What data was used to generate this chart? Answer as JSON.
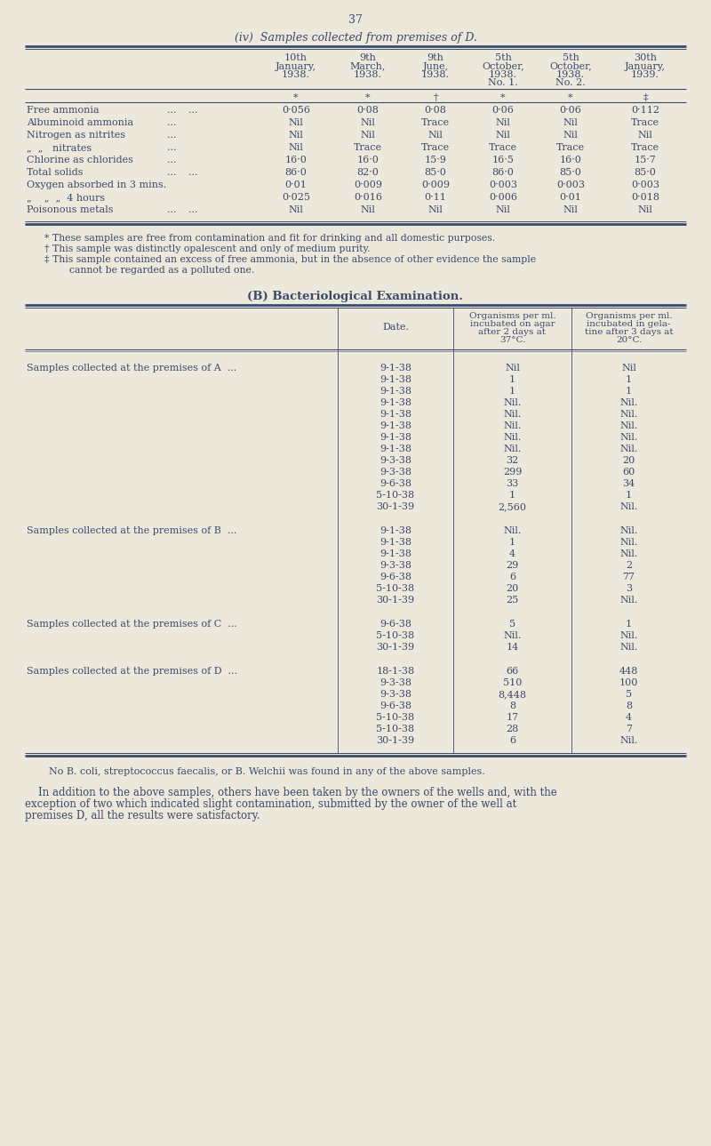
{
  "page_number": "37",
  "bg_color": "#ede8dc",
  "text_color": "#3a4a6b",
  "title": "(iv)  Samples collected from premises of D.",
  "section_b_title": "(B) Bacteriological Examination.",
  "table1_col_headers": [
    [
      "10th",
      "January,",
      "1938."
    ],
    [
      "9th",
      "March,",
      "1938."
    ],
    [
      "9th",
      "June,",
      "1938."
    ],
    [
      "5th",
      "October,",
      "1938.",
      "No. 1."
    ],
    [
      "5th",
      "October,",
      "1938.",
      "No. 2."
    ],
    [
      "30th",
      "January,",
      "1939."
    ]
  ],
  "symbol_row": [
    "*",
    "*",
    "†",
    "*",
    "*",
    "‡"
  ],
  "table1_row_labels": [
    "Free ammonia",
    "Albuminoid ammonia",
    "Nitrogen as nitrites",
    "„  „   nitrates",
    "Chlorine as chlorides",
    "Total solids",
    "Oxygen absorbed in 3 mins.",
    "„    „  „  4 hours",
    "Poisonous metals"
  ],
  "table1_row_dots1": [
    "...",
    "...",
    "...",
    "...",
    "...",
    "...",
    "",
    "",
    "..."
  ],
  "table1_row_dots2": [
    "...",
    "",
    "",
    "",
    "",
    "...",
    "",
    "",
    "..."
  ],
  "table1_data": [
    [
      "0·056",
      "0·08",
      "0·08",
      "0·06",
      "0·06",
      "0·112"
    ],
    [
      "Nil",
      "Nil",
      "Trace",
      "Nil",
      "Nil",
      "Trace"
    ],
    [
      "Nil",
      "Nil",
      "Nil",
      "Nil",
      "Nil",
      "Nil"
    ],
    [
      "Nil",
      "Trace",
      "Trace",
      "Trace",
      "Trace",
      "Trace"
    ],
    [
      "16·0",
      "16·0",
      "15·9",
      "16·5",
      "16·0",
      "15·7"
    ],
    [
      "86·0",
      "82·0",
      "85·0",
      "86·0",
      "85·0",
      "85·0"
    ],
    [
      "0·01",
      "0·009",
      "0·009",
      "0·003",
      "0·003",
      "0·003"
    ],
    [
      "0·025",
      "0·016",
      "0·11",
      "0·006",
      "0·01",
      "0·018"
    ],
    [
      "Nil",
      "Nil",
      "Nil",
      "Nil",
      "Nil",
      "Nil"
    ]
  ],
  "footnotes": [
    "* These samples are free from contamination and fit for drinking and all domestic purposes.",
    "† This sample was distinctly opalescent and only of medium purity.",
    "‡ This sample contained an excess of free ammonia, but in the absence of other evidence the sample",
    "        cannot be regarded as a polluted one."
  ],
  "table2_sections": [
    {
      "label": "Samples collected at the premises of A  ...",
      "rows": [
        [
          "9-1-38",
          "Nil",
          "Nil"
        ],
        [
          "9-1-38",
          "1",
          "1"
        ],
        [
          "9-1-38",
          "1",
          "1"
        ],
        [
          "9-1-38",
          "Nil.",
          "Nil."
        ],
        [
          "9-1-38",
          "Nil.",
          "Nil."
        ],
        [
          "9-1-38",
          "Nil.",
          "Nil."
        ],
        [
          "9-1-38",
          "Nil.",
          "Nil."
        ],
        [
          "9-1-38",
          "Nil.",
          "Nil."
        ],
        [
          "9-3-38",
          "32",
          "20"
        ],
        [
          "9-3-38",
          "299",
          "60"
        ],
        [
          "9-6-38",
          "33",
          "34"
        ],
        [
          "5-10-38",
          "1",
          "1"
        ],
        [
          "30-1-39",
          "2,560",
          "Nil."
        ]
      ]
    },
    {
      "label": "Samples collected at the premises of B  ...",
      "rows": [
        [
          "9-1-38",
          "Nil.",
          "Nil."
        ],
        [
          "9-1-38",
          "1",
          "Nil."
        ],
        [
          "9-1-38",
          "4",
          "Nil."
        ],
        [
          "9-3-38",
          "29",
          "2"
        ],
        [
          "9-6-38",
          "6",
          "77"
        ],
        [
          "5-10-38",
          "20",
          "3"
        ],
        [
          "30-1-39",
          "25",
          "Nil."
        ]
      ]
    },
    {
      "label": "Samples collected at the premises of C  ...",
      "rows": [
        [
          "9-6-38",
          "5",
          "1"
        ],
        [
          "5-10-38",
          "Nil.",
          "Nil."
        ],
        [
          "30-1-39",
          "14",
          "Nil."
        ]
      ]
    },
    {
      "label": "Samples collected at the premises of D  ...",
      "rows": [
        [
          "18-1-38",
          "66",
          "448"
        ],
        [
          "9-3-38",
          "510",
          "100"
        ],
        [
          "9-3-38",
          "8,448",
          "5"
        ],
        [
          "9-6-38",
          "8",
          "8"
        ],
        [
          "5-10-38",
          "17",
          "4"
        ],
        [
          "5-10-38",
          "28",
          "7"
        ],
        [
          "30-1-39",
          "6",
          "Nil."
        ]
      ]
    }
  ],
  "footer_note": "No B. coli, streptococcus faecalis, or B. Welchii was found in any of the above samples.",
  "closing_para_lines": [
    "    In addition to the above samples, others have been taken by the owners of the wells and, with the",
    "exception of two which indicated slight contamination, submitted by the owner of the well at",
    "premises D, all the results were satisfactory."
  ]
}
